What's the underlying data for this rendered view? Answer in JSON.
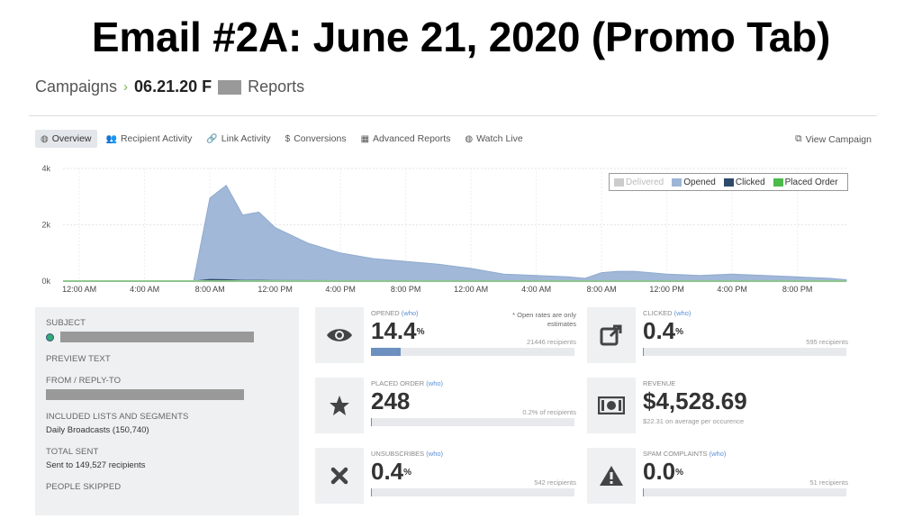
{
  "slide_title": "Email #2A: June 21, 2020 (Promo Tab)",
  "breadcrumb": {
    "root": "Campaigns",
    "current": "06.21.20 F",
    "tail": "Reports"
  },
  "tabs": [
    {
      "label": "Overview",
      "icon": "globe-icon",
      "active": true
    },
    {
      "label": "Recipient Activity",
      "icon": "users-icon",
      "active": false
    },
    {
      "label": "Link Activity",
      "icon": "link-icon",
      "active": false
    },
    {
      "label": "Conversions",
      "icon": "dollar-icon",
      "active": false
    },
    {
      "label": "Advanced Reports",
      "icon": "bar-chart-icon",
      "active": false
    },
    {
      "label": "Watch Live",
      "icon": "globe-icon",
      "active": false
    }
  ],
  "view_campaign": "View Campaign",
  "chart_data": {
    "type": "area",
    "y_ticks": [
      "4k",
      "2k",
      "0k"
    ],
    "ylim": [
      0,
      4000
    ],
    "x_ticks": [
      "12:00 AM",
      "4:00 AM",
      "8:00 AM",
      "12:00 PM",
      "4:00 PM",
      "8:00 PM",
      "12:00 AM",
      "4:00 AM",
      "8:00 AM",
      "12:00 PM",
      "4:00 PM",
      "8:00 PM"
    ],
    "x_unit": "hours since first 12:00 AM",
    "legend_position": "top-right",
    "series": [
      {
        "name": "Delivered",
        "color": "#cccccc",
        "dimmed": true,
        "x": [],
        "values": []
      },
      {
        "name": "Opened",
        "color": "#9db5d6",
        "x": [
          -1,
          7,
          8,
          9,
          10,
          11,
          12,
          14,
          16,
          18,
          20,
          22,
          24,
          26,
          28,
          30,
          31,
          32,
          33,
          34,
          36,
          38,
          40,
          42,
          44,
          46,
          47
        ],
        "values": [
          0,
          0,
          2950,
          3400,
          2350,
          2450,
          1900,
          1350,
          1000,
          800,
          700,
          600,
          450,
          250,
          200,
          150,
          100,
          300,
          350,
          350,
          250,
          200,
          250,
          200,
          150,
          100,
          50
        ]
      },
      {
        "name": "Clicked",
        "color": "#2d4a6b",
        "x": [
          -1,
          7,
          8,
          9,
          10,
          11,
          12,
          47
        ],
        "values": [
          0,
          0,
          60,
          50,
          30,
          30,
          20,
          0
        ]
      },
      {
        "name": "Placed Order",
        "color": "#4bbb4b",
        "x": [
          -1,
          47
        ],
        "values": [
          0,
          0
        ]
      }
    ]
  },
  "details": {
    "subject_label": "SUBJECT",
    "preview_label": "PREVIEW TEXT",
    "from_label": "FROM / REPLY-TO",
    "lists_label": "INCLUDED LISTS AND SEGMENTS",
    "lists_value": "Daily Broadcasts (150,740)",
    "sent_label": "TOTAL SENT",
    "sent_value": "Sent to 149,527 recipients",
    "skipped_label": "PEOPLE SKIPPED"
  },
  "cards": {
    "opened": {
      "title": "OPENED",
      "who": "(who)",
      "value": "14.4",
      "suffix": "%",
      "note": "* Open rates are only estimates",
      "sub": "21446 recipients",
      "fill": 0.144,
      "icon": "eye-icon"
    },
    "clicked": {
      "title": "CLICKED",
      "who": "(who)",
      "value": "0.4",
      "suffix": "%",
      "sub": "595 recipients",
      "fill": 0.004,
      "icon": "external-link-icon"
    },
    "placed": {
      "title": "PLACED ORDER",
      "who": "(who)",
      "value": "248",
      "suffix": "",
      "sub": "0.2% of recipients",
      "fill": 0.002,
      "icon": "star-icon"
    },
    "revenue": {
      "title": "REVENUE",
      "value": "$4,528.69",
      "sub": "$22.31 on average per occurence",
      "icon": "money-icon"
    },
    "unsub": {
      "title": "UNSUBSCRIBES",
      "who": "(who)",
      "value": "0.4",
      "suffix": "%",
      "sub": "542 recipients",
      "fill": 0.004,
      "icon": "x-icon"
    },
    "spam": {
      "title": "SPAM COMPLAINTS",
      "who": "(who)",
      "value": "0.0",
      "suffix": "%",
      "sub": "51 recipients",
      "fill": 0.0,
      "icon": "warning-icon"
    }
  }
}
